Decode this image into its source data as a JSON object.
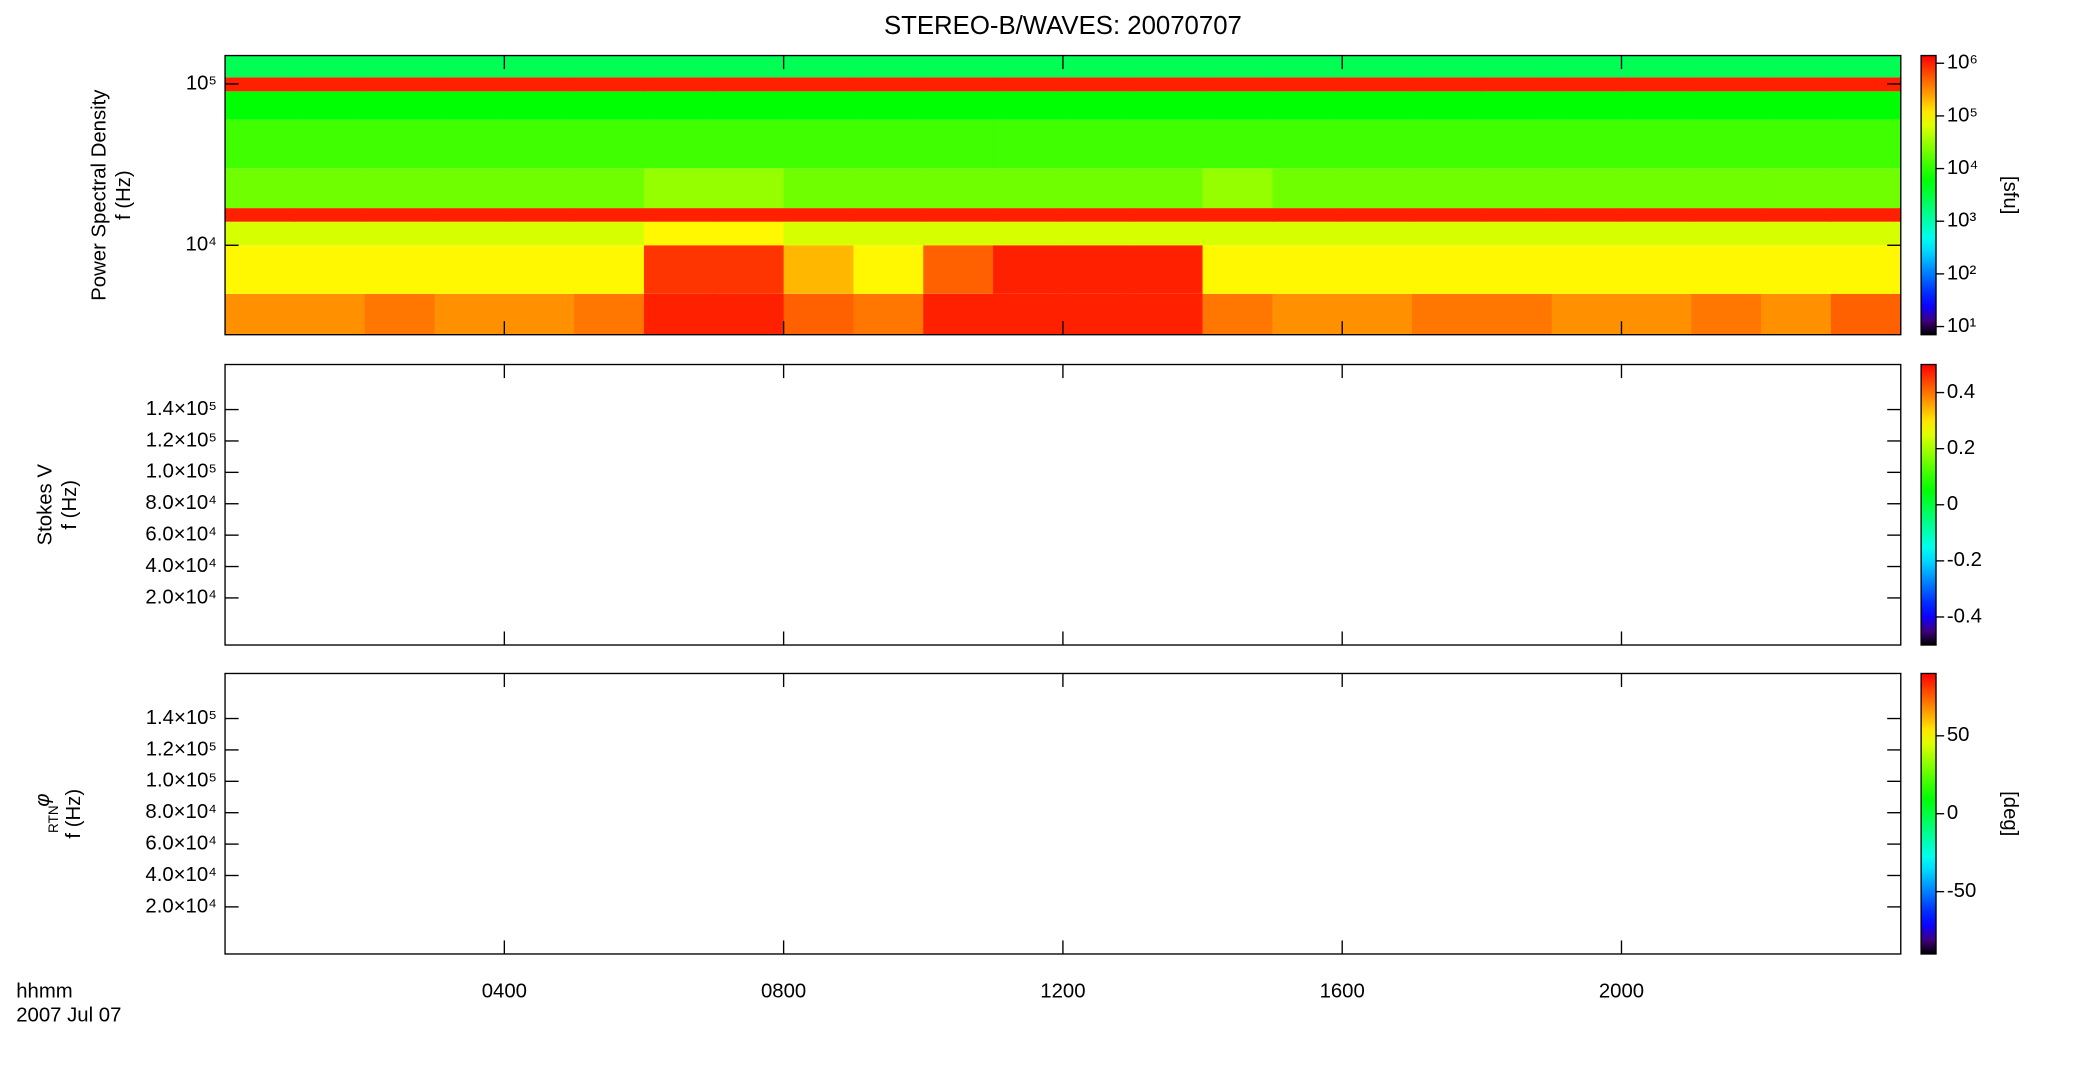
{
  "title": "STEREO-B/WAVES: 20070707",
  "time_axis": {
    "label": "hhmm",
    "date": "2007 Jul 07",
    "xlim": [
      0,
      24
    ],
    "xticks": [
      {
        "value": 4,
        "label": "0400"
      },
      {
        "value": 8,
        "label": "0800"
      },
      {
        "value": 12,
        "label": "1200"
      },
      {
        "value": 16,
        "label": "1600"
      },
      {
        "value": 20,
        "label": "2000"
      }
    ]
  },
  "chart_data": [
    {
      "type": "heatmap",
      "ylabel": [
        "Power Spectral Density",
        "f (Hz)"
      ],
      "ylog": true,
      "ylim": [
        2790,
        150000
      ],
      "yticks": [
        {
          "value": 10000,
          "label": "10⁴"
        },
        {
          "value": 100000,
          "label": "10⁵"
        }
      ],
      "x_edges": [
        0,
        1,
        2,
        3,
        4,
        5,
        6,
        7,
        8,
        9,
        10,
        11,
        12,
        13,
        14,
        15,
        16,
        17,
        18,
        19,
        20,
        21,
        22,
        23,
        24
      ],
      "y_edges": [
        2790,
        5000,
        10000,
        14000,
        17000,
        30000,
        60000,
        90000,
        110000,
        150000
      ],
      "z": [
        [
          300000,
          300000,
          400000,
          300000,
          300000,
          400000,
          1000000,
          1000000,
          500000,
          400000,
          1000000,
          1000000,
          1000000,
          1000000,
          400000,
          300000,
          300000,
          400000,
          400000,
          300000,
          300000,
          400000,
          300000,
          500000
        ],
        [
          100000,
          100000,
          100000,
          100000,
          100000,
          100000,
          800000,
          800000,
          200000,
          100000,
          500000,
          1000000,
          1000000,
          1000000,
          100000,
          100000,
          100000,
          100000,
          100000,
          100000,
          100000,
          100000,
          100000,
          100000
        ],
        [
          60000,
          60000,
          60000,
          60000,
          60000,
          60000,
          100000,
          100000,
          60000,
          60000,
          60000,
          60000,
          60000,
          60000,
          60000,
          60000,
          60000,
          60000,
          60000,
          60000,
          60000,
          60000,
          60000,
          60000
        ],
        [
          1000000,
          1000000,
          1000000,
          1000000,
          1000000,
          1000000,
          1000000,
          1000000,
          1000000,
          1000000,
          1000000,
          1000000,
          1000000,
          1000000,
          1000000,
          1000000,
          1000000,
          1000000,
          1000000,
          1000000,
          1000000,
          1000000,
          1000000,
          1000000
        ],
        [
          20000,
          20000,
          20000,
          20000,
          20000,
          20000,
          30000,
          30000,
          20000,
          20000,
          20000,
          20000,
          20000,
          20000,
          30000,
          20000,
          20000,
          20000,
          20000,
          20000,
          20000,
          20000,
          20000,
          20000
        ],
        [
          12000,
          12000,
          12000,
          12000,
          12000,
          12000,
          12000,
          12000,
          12000,
          12000,
          12000,
          12000,
          12000,
          12000,
          12000,
          12000,
          12000,
          12000,
          12000,
          12000,
          12000,
          12000,
          12000,
          12000
        ],
        [
          6000,
          6000,
          6000,
          6000,
          6000,
          6000,
          6000,
          6000,
          6000,
          6000,
          6000,
          6000,
          6000,
          6000,
          6000,
          6000,
          6000,
          6000,
          6000,
          6000,
          6000,
          6000,
          6000,
          6000
        ],
        [
          1000000,
          1000000,
          1000000,
          1000000,
          1000000,
          1000000,
          1000000,
          1000000,
          1000000,
          1000000,
          1000000,
          1000000,
          1000000,
          1000000,
          1000000,
          1000000,
          1000000,
          1000000,
          1000000,
          1000000,
          1000000,
          1000000,
          1000000,
          1000000
        ],
        [
          2500,
          2500,
          2500,
          2500,
          2500,
          2500,
          2500,
          2500,
          2500,
          2500,
          2500,
          2500,
          2500,
          2500,
          2500,
          2500,
          2500,
          2500,
          2500,
          2500,
          2500,
          2500,
          2500,
          2500
        ]
      ],
      "colorbar": {
        "label": "[sfu]",
        "log": true,
        "zlim": [
          7,
          1400000
        ],
        "ticks": [
          {
            "value": 10,
            "label": "10¹"
          },
          {
            "value": 100,
            "label": "10²"
          },
          {
            "value": 1000,
            "label": "10³"
          },
          {
            "value": 10000,
            "label": "10⁴"
          },
          {
            "value": 100000,
            "label": "10⁵"
          },
          {
            "value": 1000000,
            "label": "10⁶"
          }
        ]
      }
    },
    {
      "type": "heatmap",
      "ylabel": [
        "Stokes V",
        "f (Hz)"
      ],
      "ylog": false,
      "ylim": [
        -10000,
        168700
      ],
      "yticks": [
        {
          "value": 20000,
          "label": "2.0×10⁴"
        },
        {
          "value": 40000,
          "label": "4.0×10⁴"
        },
        {
          "value": 60000,
          "label": "6.0×10⁴"
        },
        {
          "value": 80000,
          "label": "8.0×10⁴"
        },
        {
          "value": 100000,
          "label": "1.0×10⁵"
        },
        {
          "value": 120000,
          "label": "1.2×10⁵"
        },
        {
          "value": 140000,
          "label": "1.4×10⁵"
        }
      ],
      "colorbar": {
        "log": false,
        "zlim": [
          -0.5,
          0.5
        ],
        "ticks": [
          -0.4,
          -0.2,
          0.0,
          0.2,
          0.4
        ]
      }
    },
    {
      "type": "heatmap",
      "ylabel": [
        "φ",
        "RTN",
        "f (Hz)"
      ],
      "ylog": false,
      "ylim": [
        -10000,
        168700
      ],
      "yticks": [
        {
          "value": 20000,
          "label": "2.0×10⁴"
        },
        {
          "value": 40000,
          "label": "4.0×10⁴"
        },
        {
          "value": 60000,
          "label": "6.0×10⁴"
        },
        {
          "value": 80000,
          "label": "8.0×10⁴"
        },
        {
          "value": 100000,
          "label": "1.0×10⁵"
        },
        {
          "value": 120000,
          "label": "1.2×10⁵"
        },
        {
          "value": 140000,
          "label": "1.4×10⁵"
        }
      ],
      "colorbar": {
        "label": "[deg]",
        "log": false,
        "zlim": [
          -90,
          90
        ],
        "ticks": [
          -50,
          0,
          50
        ]
      }
    }
  ]
}
